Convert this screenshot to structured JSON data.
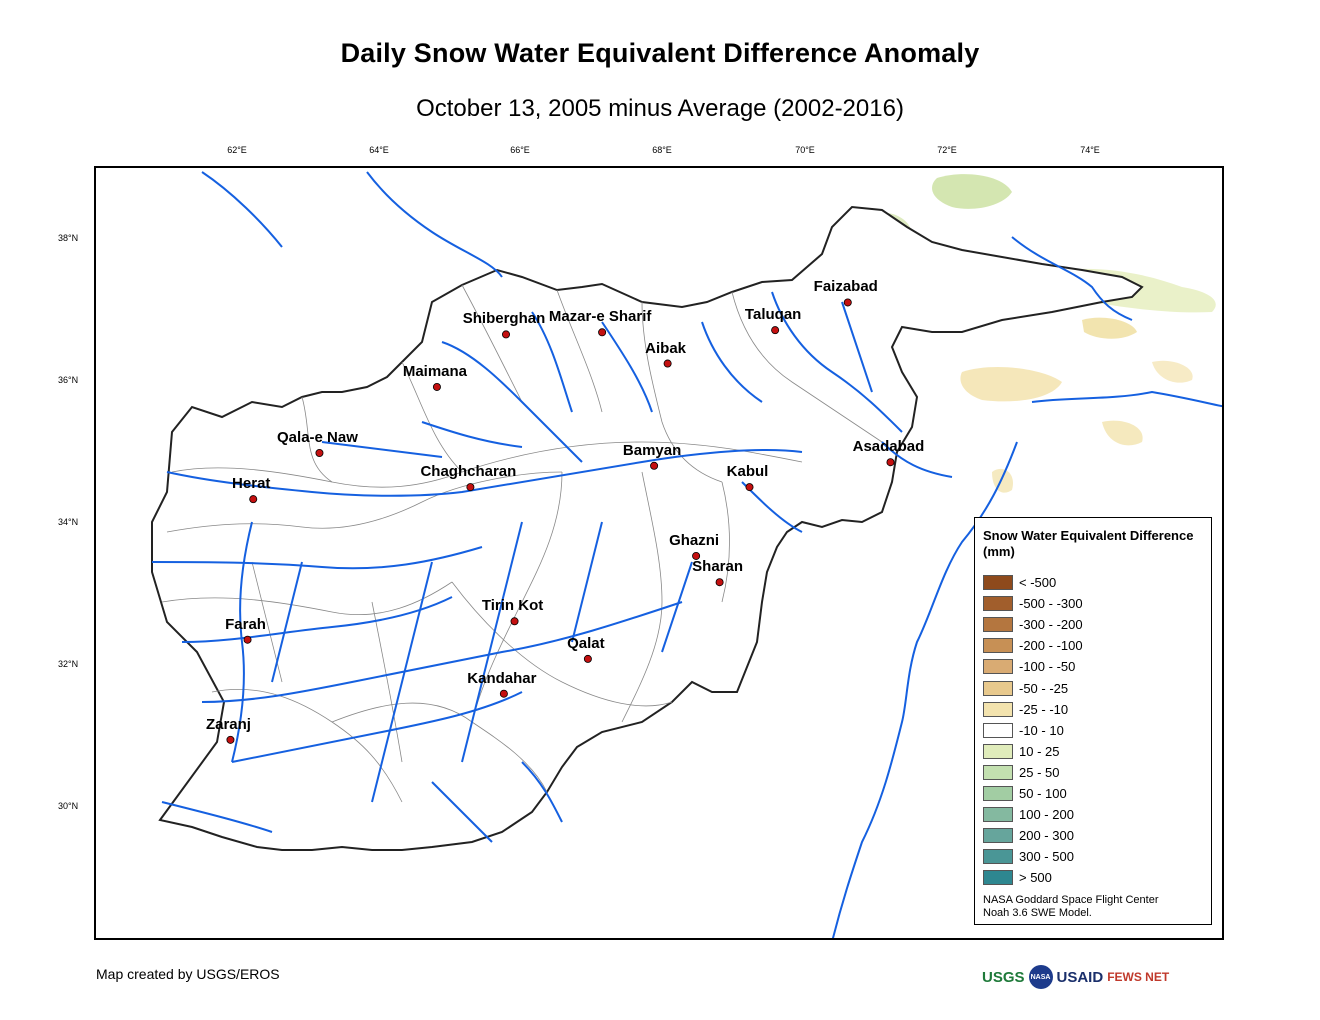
{
  "title": "Daily Snow Water Equivalent Difference Anomaly",
  "subtitle": "October 13, 2005 minus Average (2002-2016)",
  "longitude_ticks": [
    "62°E",
    "64°E",
    "66°E",
    "68°E",
    "70°E",
    "72°E",
    "74°E"
  ],
  "latitude_ticks": [
    "38°N",
    "36°N",
    "34°N",
    "32°N",
    "30°N"
  ],
  "cities": [
    {
      "name": "Faizabad",
      "lon": 70.55,
      "lat": 37.12
    },
    {
      "name": "Shiberghan",
      "lon": 65.75,
      "lat": 36.67
    },
    {
      "name": "Mazar-e Sharif",
      "lon": 67.1,
      "lat": 36.7
    },
    {
      "name": "Taluqan",
      "lon": 69.53,
      "lat": 36.73
    },
    {
      "name": "Aibak",
      "lon": 68.02,
      "lat": 36.26
    },
    {
      "name": "Maimana",
      "lon": 64.78,
      "lat": 35.93
    },
    {
      "name": "Qala-e Naw",
      "lon": 63.13,
      "lat": 35.0
    },
    {
      "name": "Bamyan",
      "lon": 67.83,
      "lat": 34.82
    },
    {
      "name": "Asadabad",
      "lon": 71.15,
      "lat": 34.87
    },
    {
      "name": "Herat",
      "lon": 62.2,
      "lat": 34.35
    },
    {
      "name": "Chaghcharan",
      "lon": 65.25,
      "lat": 34.52
    },
    {
      "name": "Kabul",
      "lon": 69.17,
      "lat": 34.52
    },
    {
      "name": "Ghazni",
      "lon": 68.42,
      "lat": 33.55
    },
    {
      "name": "Sharan",
      "lon": 68.75,
      "lat": 33.18
    },
    {
      "name": "Tirin Kot",
      "lon": 65.87,
      "lat": 32.63
    },
    {
      "name": "Farah",
      "lon": 62.12,
      "lat": 32.37
    },
    {
      "name": "Qalat",
      "lon": 66.9,
      "lat": 32.1
    },
    {
      "name": "Kandahar",
      "lon": 65.72,
      "lat": 31.61
    },
    {
      "name": "Zaranj",
      "lon": 61.88,
      "lat": 30.96
    }
  ],
  "legend": {
    "title": "Snow Water Equivalent Difference (mm)",
    "items": [
      {
        "label": "< -500",
        "color": "#8e4a1c"
      },
      {
        "label": "-500 - -300",
        "color": "#a15e2c"
      },
      {
        "label": "-300 - -200",
        "color": "#b4763f"
      },
      {
        "label": "-200 - -100",
        "color": "#c79055"
      },
      {
        "label": "-100 - -50",
        "color": "#d9ab73"
      },
      {
        "label": "-50 - -25",
        "color": "#e8c98d"
      },
      {
        "label": "-25 - -10",
        "color": "#f3e3ae"
      },
      {
        "label": "-10 - 10",
        "color": "#ffffff"
      },
      {
        "label": "10 - 25",
        "color": "#e0ecbb"
      },
      {
        "label": "25 - 50",
        "color": "#c3e0b0"
      },
      {
        "label": "50 - 100",
        "color": "#a2cda3"
      },
      {
        "label": "100 - 200",
        "color": "#84b9a0"
      },
      {
        "label": "200 - 300",
        "color": "#66a59c"
      },
      {
        "label": "300 - 500",
        "color": "#4a9696"
      },
      {
        "label": "> 500",
        "color": "#2e8790"
      }
    ],
    "credit_line1": "NASA Goddard Space Flight Center",
    "credit_line2": "Noah 3.6 SWE Model."
  },
  "footer_credit": "Map created by USGS/EROS",
  "logos": {
    "usgs": "USGS",
    "nasa": "NASA",
    "usaid": "USAID",
    "fews": "FEWS NET"
  },
  "colors": {
    "river": "#1560e0",
    "border": "#222222",
    "province": "#888888",
    "city_marker": "#c41010"
  }
}
